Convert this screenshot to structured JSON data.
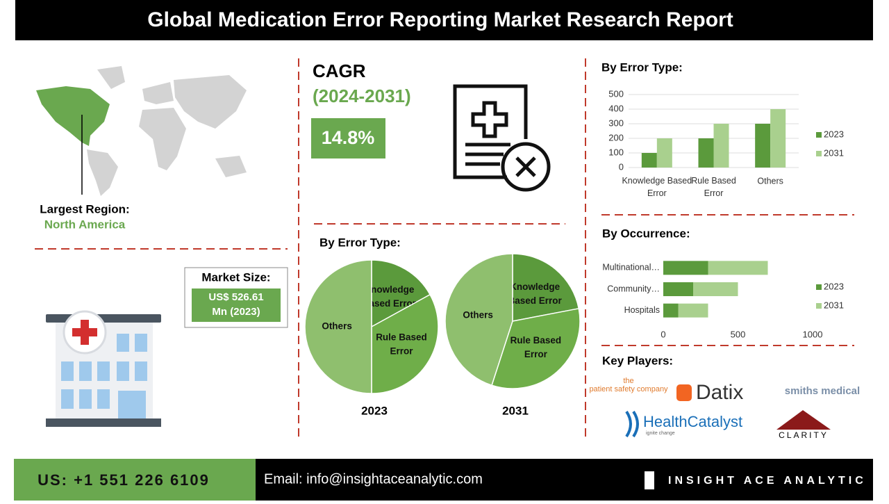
{
  "header": {
    "title": "Global Medication Error Reporting Market Research Report"
  },
  "region": {
    "label": "Largest Region:",
    "value": "North America"
  },
  "cagr": {
    "label": "CAGR",
    "period": "(2024-2031)",
    "value": "14.8%"
  },
  "market_size": {
    "label": "Market Size:",
    "value": "US$ 526.61 Mn (2023)"
  },
  "key_players": {
    "title": "Key Players:",
    "names": [
      "the patient safety company",
      "Datix",
      "smiths medical",
      "HealthCatalyst",
      "ignite change",
      "CLARITY"
    ]
  },
  "footer": {
    "phone": "US: +1 551 226 6109",
    "email": "Email: info@insightaceanalytic.com",
    "brand": "INSIGHT ACE ANALYTIC"
  },
  "chart_data": [
    {
      "type": "bar",
      "title": "By Error Type:",
      "categories": [
        "Knowledge Based Error",
        "Rule Based Error",
        "Others"
      ],
      "series": [
        {
          "name": "2023",
          "color": "#5b9a3c",
          "values": [
            100,
            200,
            300
          ]
        },
        {
          "name": "2031",
          "color": "#a9d08e",
          "values": [
            200,
            300,
            400
          ]
        }
      ],
      "ylim": [
        0,
        500
      ],
      "yticks": [
        0,
        100,
        200,
        300,
        400,
        500
      ],
      "grid": true,
      "legend": "right"
    },
    {
      "type": "hbar",
      "title": "By Occurrence:",
      "stacked": true,
      "categories": [
        "Multinational…",
        "Community…",
        "Hospitals"
      ],
      "series": [
        {
          "name": "2023",
          "color": "#5b9a3c",
          "values": [
            300,
            200,
            100
          ]
        },
        {
          "name": "2031",
          "color": "#a9d08e",
          "values": [
            400,
            300,
            200
          ]
        }
      ],
      "xlim": [
        0,
        1000
      ],
      "xticks": [
        0,
        500,
        1000
      ],
      "legend": "right"
    },
    {
      "type": "pie",
      "title": "By Error Type:",
      "subtitle": "2023",
      "categories": [
        "Knowledge Based Error",
        "Rule Based Error",
        "Others"
      ],
      "values": [
        17,
        33,
        50
      ],
      "colors": [
        "#5b9a3c",
        "#6fae49",
        "#8fbf6e"
      ]
    },
    {
      "type": "pie",
      "subtitle": "2031",
      "categories": [
        "Knowledge Based Error",
        "Rule Based Error",
        "Others"
      ],
      "values": [
        22,
        33,
        45
      ],
      "colors": [
        "#5b9a3c",
        "#6fae49",
        "#8fbf6e"
      ]
    }
  ]
}
